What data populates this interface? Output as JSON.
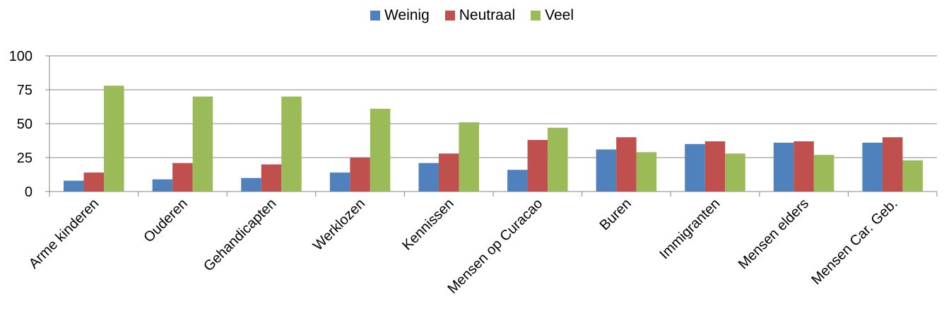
{
  "chart_data": {
    "type": "bar",
    "categories": [
      "Arme kinderen",
      "Ouderen",
      "Gehandicapten",
      "Werklozen",
      "Kennissen",
      "Mensen op Curacao",
      "Buren",
      "Immigranten",
      "Mensen elders",
      "Mensen Car. Geb."
    ],
    "series": [
      {
        "name": "Weinig",
        "color": "#4F81BD",
        "values": [
          8,
          9,
          10,
          14,
          21,
          16,
          31,
          35,
          36,
          36
        ]
      },
      {
        "name": "Neutraal",
        "color": "#C0504D",
        "values": [
          14,
          21,
          20,
          25,
          28,
          38,
          40,
          37,
          37,
          40
        ]
      },
      {
        "name": "Veel",
        "color": "#9BBB59",
        "values": [
          78,
          70,
          70,
          61,
          51,
          47,
          29,
          28,
          27,
          23
        ]
      }
    ],
    "yticks": [
      "0",
      "25",
      "50",
      "75",
      "100"
    ],
    "ylim": [
      0,
      100
    ],
    "grid": true,
    "legend_position": "top"
  }
}
